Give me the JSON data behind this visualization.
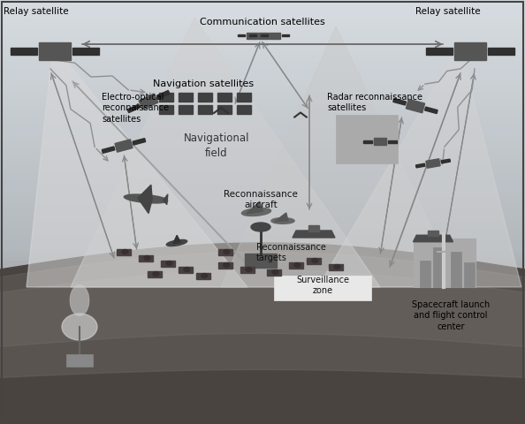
{
  "fig_width": 5.94,
  "fig_height": 4.8,
  "dpi": 100,
  "labels": {
    "relay_sat_left": "Relay satellite",
    "relay_sat_right": "Relay satellite",
    "comm_sat": "Communication satellites",
    "nav_sat": "Navigation satellites",
    "electro_optical": "Electro-optical\nreconnaissance\nsatellites",
    "radar_recon": "Radar reconnaissance\nsatellites",
    "nav_field": "Navigational\nfield",
    "recon_aircraft": "Reconnaissance\naircraft",
    "recon_targets": "Reconnaissance\ntargets",
    "surveillance_zone": "Surveillance\nzone",
    "spacecraft_launch": "Spacecraft launch\nand flight control\ncenter"
  },
  "bg_sky_top": "#d4d8dc",
  "bg_sky_bottom": "#b8bcbf",
  "earth_color": "#5a5450",
  "earth_color2": "#7a7470",
  "tri_color1": "#cecece",
  "tri_color2": "#d8d8d8",
  "tri_color3": "#c0c0c0",
  "arrow_color": "#909090",
  "arrow_color2": "#707070",
  "text_color": "#111111",
  "sat_body": "#555555",
  "sat_panel": "#333333"
}
